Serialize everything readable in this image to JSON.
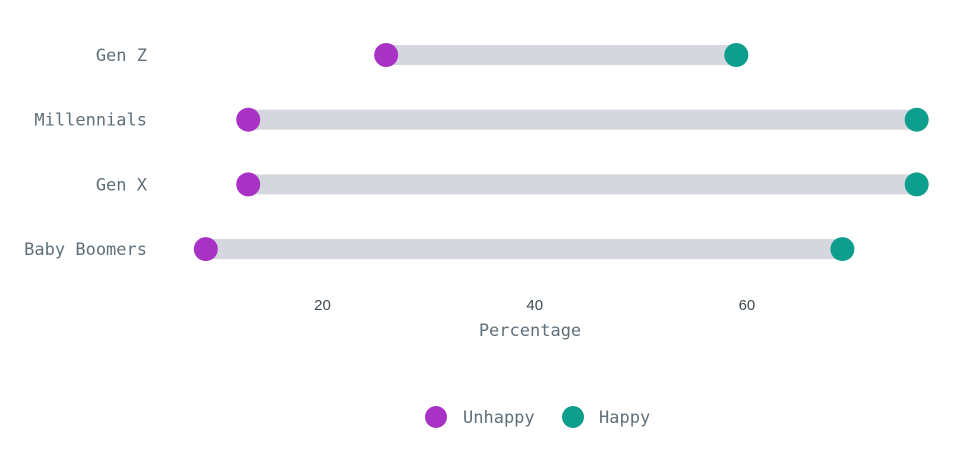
{
  "chart_data": {
    "type": "dumbbell",
    "categories": [
      "Gen Z",
      "Millennials",
      "Gen X",
      "Baby Boomers"
    ],
    "series": [
      {
        "name": "Unhappy",
        "color": "#a832c4",
        "values": [
          26,
          13,
          13,
          9
        ]
      },
      {
        "name": "Happy",
        "color": "#0e9e8e",
        "values": [
          59,
          76,
          76,
          69
        ]
      }
    ],
    "xlabel": "Percentage",
    "ylabel": "",
    "xticks": [
      20,
      40,
      60
    ],
    "xlim": [
      7.7,
      76.5
    ],
    "legend_position": "bottom",
    "bar_color": "#d4d7dd"
  }
}
